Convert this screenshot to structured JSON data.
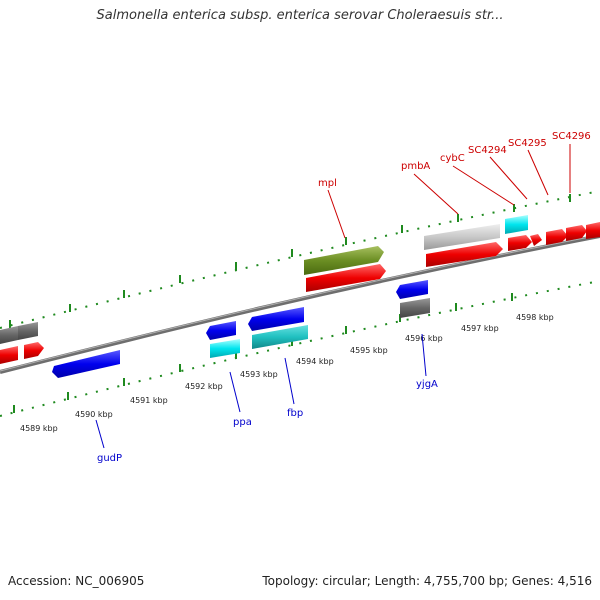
{
  "title": "Salmonella enterica subsp. enterica serovar Choleraesuis str...",
  "footer": {
    "accession": "Accession: NC_006905",
    "topology": "Topology: circular; Length: 4,755,700 bp; Genes: 4,516"
  },
  "colors": {
    "backbone": "#808080",
    "tick": "#1f8a1f",
    "red_label": "#cc0000",
    "blue_label": "#0000cc"
  },
  "scale": {
    "unit": "kbp",
    "ticks": [
      "4589 kbp",
      "4590 kbp",
      "4591 kbp",
      "4592 kbp",
      "4593 kbp",
      "4594 kbp",
      "4595 kbp",
      "4596 kbp",
      "4597 kbp",
      "4598 kbp"
    ]
  },
  "gene_labels": {
    "top": [
      "mpl",
      "pmbA",
      "cybC",
      "SC4294",
      "SC4295",
      "SC4296"
    ],
    "bottom": [
      "gudP",
      "ppa",
      "fbp",
      "yjgA"
    ]
  }
}
